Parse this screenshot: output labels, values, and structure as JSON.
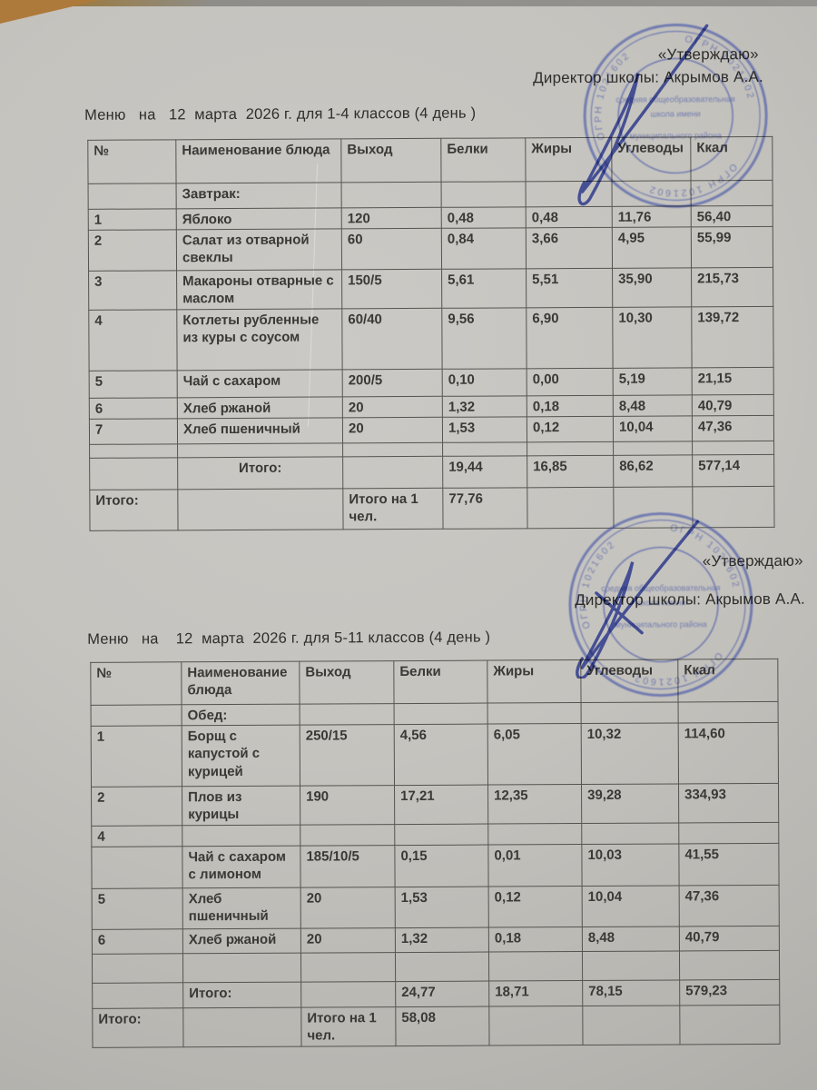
{
  "approval": {
    "approve_label": "«Утверждаю»",
    "director_label": "Директор школы: Акрымов А.А."
  },
  "stamp": {
    "ring_text": "ОГРН 1021602",
    "lines": [
      "средняя общеобразовательная",
      "школа имени",
      "муниципального района"
    ],
    "color": "#4052a8"
  },
  "menus": [
    {
      "title": "Меню   на   12  марта  2026 г. для 1-4 классов (4 день )",
      "columns": [
        "№",
        "Наименование блюда",
        "Выход",
        "Белки",
        "Жиры",
        "Углеводы",
        "Ккал"
      ],
      "rows": [
        [
          "",
          "Завтрак:",
          "",
          "",
          "",
          "",
          ""
        ],
        [
          "1",
          "Яблоко",
          "120",
          "0,48",
          "0,48",
          "11,76",
          "56,40"
        ],
        [
          "2",
          "Салат из отварной свеклы",
          "60",
          "0,84",
          "3,66",
          "4,95",
          "55,99"
        ],
        [
          "3",
          "Макароны отварные с маслом",
          "150/5",
          "5,61",
          "5,51",
          "35,90",
          "215,73"
        ],
        [
          "4",
          "Котлеты  рубленные из куры с соусом",
          "60/40",
          "9,56",
          "6,90",
          "10,30",
          "139,72"
        ],
        [
          "5",
          "Чай с сахаром",
          "200/5",
          "0,10",
          "0,00",
          "5,19",
          "21,15"
        ],
        [
          "6",
          "Хлеб ржаной",
          "20",
          "1,32",
          "0,18",
          "8,48",
          "40,79"
        ],
        [
          "7",
          "Хлеб пшеничный",
          "20",
          "1,53",
          "0,12",
          "10,04",
          "47,36"
        ],
        [
          "",
          "",
          "",
          "",
          "",
          "",
          ""
        ],
        [
          "",
          "Итого:",
          "",
          "19,44",
          "16,85",
          "86,62",
          "577,14"
        ],
        [
          "Итого:",
          "",
          "Итого на 1 чел.",
          "77,76",
          "",
          "",
          ""
        ]
      ]
    },
    {
      "title": "Меню   на    12  марта  2026 г. для 5-11 классов (4 день )",
      "columns": [
        "№",
        "Наименование блюда",
        "Выход",
        "Белки",
        "Жиры",
        "Углеводы",
        "Ккал"
      ],
      "rows": [
        [
          "",
          "Обед:",
          "",
          "",
          "",
          "",
          ""
        ],
        [
          "1",
          "Борщ с капустой с курицей",
          "250/15",
          "4,56",
          "6,05",
          "10,32",
          "114,60"
        ],
        [
          "2",
          "Плов из курицы",
          "190",
          "17,21",
          "12,35",
          "39,28",
          "334,93"
        ],
        [
          "4",
          "",
          "",
          "",
          "",
          "",
          ""
        ],
        [
          "",
          "Чай с сахаром с лимоном",
          "185/10/5",
          "0,15",
          "0,01",
          "10,03",
          "41,55"
        ],
        [
          "5",
          "Хлеб пшеничный",
          "20",
          "1,53",
          "0,12",
          "10,04",
          "47,36"
        ],
        [
          "6",
          "Хлеб  ржаной",
          "20",
          "1,32",
          "0,18",
          "8,48",
          "40,79"
        ],
        [
          "",
          "",
          "",
          "",
          "",
          "",
          ""
        ],
        [
          "",
          "Итого:",
          "",
          "24,77",
          "18,71",
          "78,15",
          "579,23"
        ],
        [
          "Итого:",
          "",
          "Итого на 1 чел.",
          "58,08",
          "",
          "",
          ""
        ]
      ]
    }
  ]
}
